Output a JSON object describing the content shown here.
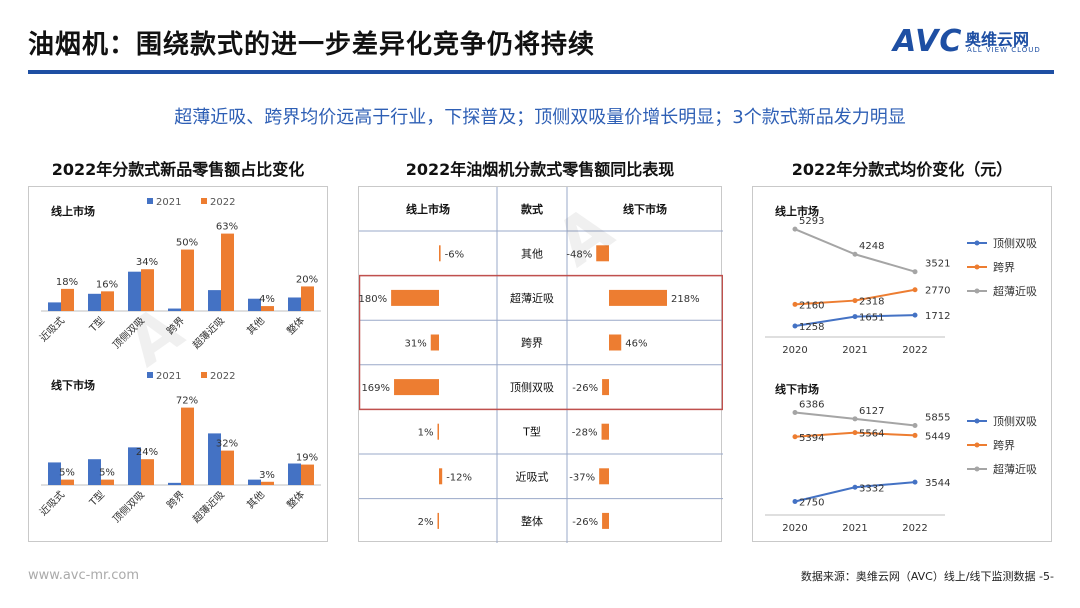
{
  "header": {
    "title": "油烟机：围绕款式的进一步差异化竞争仍将持续",
    "logo_text": "AVC",
    "logo_cn": "奥维云网",
    "logo_en": "ALL VIEW CLOUD"
  },
  "subtitle": "超薄近吸、跨界均价远高于行业，下探普及；顶侧双吸量价增长明显；3个款式新品发力明显",
  "colors": {
    "blue": "#4472c4",
    "orange": "#ed7d31",
    "gray": "#a5a5a5",
    "accent": "#1e4fa3",
    "table_red": "#c0504d"
  },
  "sections": {
    "left_title": "2022年分款式新品零售额占比变化",
    "middle_title": "2022年油烟机分款式零售额同比表现",
    "right_title": "2022年分款式均价变化（元）"
  },
  "footer": {
    "website": "www.avc-mr.com",
    "source": "数据来源：奥维云网（AVC）线上/线下监测数据   -5-"
  },
  "chart_data": [
    {
      "type": "bar",
      "title": "线上市场",
      "categories": [
        "近吸式",
        "T型",
        "顶侧双吸",
        "跨界",
        "超薄近吸",
        "其他",
        "整体"
      ],
      "series": [
        {
          "name": "2021",
          "values": [
            7,
            14,
            32,
            2,
            17,
            10,
            11
          ]
        },
        {
          "name": "2022",
          "values": [
            18,
            16,
            34,
            50,
            63,
            4,
            20
          ]
        }
      ],
      "labels_2022": [
        "18%",
        "16%",
        "34%",
        "50%",
        "63%",
        "4%",
        "20%"
      ],
      "ylim": [
        0,
        70
      ]
    },
    {
      "type": "bar",
      "title": "线下市场",
      "categories": [
        "近吸式",
        "T型",
        "顶侧双吸",
        "跨界",
        "超薄近吸",
        "其他",
        "整体"
      ],
      "series": [
        {
          "name": "2021",
          "values": [
            21,
            24,
            35,
            2,
            48,
            5,
            20
          ]
        },
        {
          "name": "2022",
          "values": [
            5,
            5,
            24,
            72,
            32,
            3,
            19
          ]
        }
      ],
      "labels_2022": [
        "5%",
        "5%",
        "24%",
        "72%",
        "32%",
        "3%",
        "19%"
      ],
      "ylim": [
        0,
        80
      ]
    },
    {
      "type": "table",
      "columns": [
        "线上市场",
        "款式",
        "线下市场"
      ],
      "rows": [
        {
          "category": "其他",
          "online": -6,
          "online_label": "-6%",
          "offline": -48,
          "offline_label": "-48%"
        },
        {
          "category": "超薄近吸",
          "online": 180,
          "online_label": "180%",
          "offline": 218,
          "offline_label": "218%"
        },
        {
          "category": "跨界",
          "online": 31,
          "online_label": "31%",
          "offline": 46,
          "offline_label": "46%"
        },
        {
          "category": "顶侧双吸",
          "online": 169,
          "online_label": "169%",
          "offline": -26,
          "offline_label": "-26%"
        },
        {
          "category": "T型",
          "online": 1,
          "online_label": "1%",
          "offline": -28,
          "offline_label": "-28%"
        },
        {
          "category": "近吸式",
          "online": -12,
          "online_label": "-12%",
          "offline": -37,
          "offline_label": "-37%"
        },
        {
          "category": "整体",
          "online": 2,
          "online_label": "2%",
          "offline": -26,
          "offline_label": "-26%"
        }
      ]
    },
    {
      "type": "line",
      "title": "线上市场",
      "x": [
        "2020",
        "2021",
        "2022"
      ],
      "series": [
        {
          "name": "顶侧双吸",
          "values": [
            1258,
            1651,
            1712
          ]
        },
        {
          "name": "跨界",
          "values": [
            2160,
            2318,
            2770
          ]
        },
        {
          "name": "超薄近吸",
          "values": [
            5293,
            4248,
            3521
          ]
        }
      ],
      "ylim": [
        800,
        5800
      ]
    },
    {
      "type": "line",
      "title": "线下市场",
      "x": [
        "2020",
        "2021",
        "2022"
      ],
      "series": [
        {
          "name": "顶侧双吸",
          "values": [
            2750,
            3332,
            3544
          ]
        },
        {
          "name": "跨界",
          "values": [
            5394,
            5564,
            5449
          ]
        },
        {
          "name": "超薄近吸",
          "values": [
            6386,
            6127,
            5855
          ]
        }
      ],
      "ylim": [
        2200,
        7100
      ]
    }
  ]
}
